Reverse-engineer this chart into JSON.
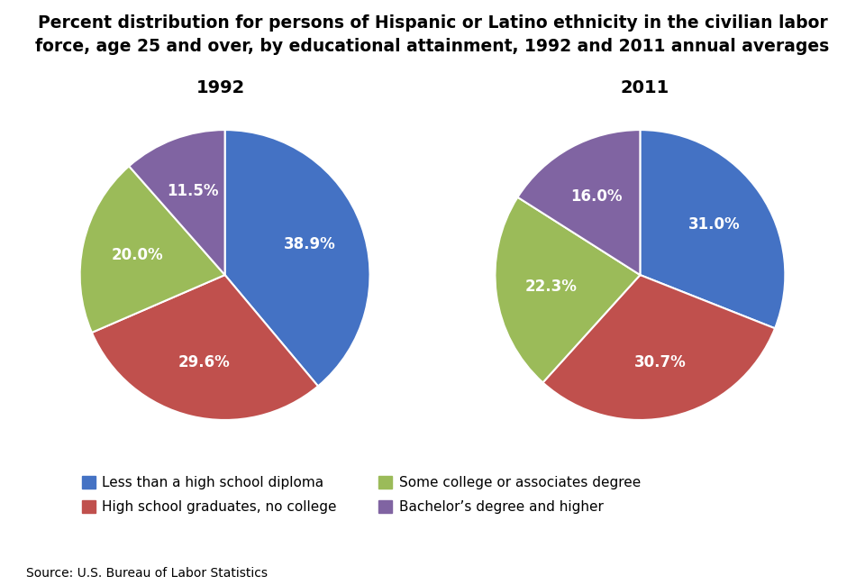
{
  "title_line1": "Percent distribution for persons of Hispanic or Latino ethnicity in the civilian labor",
  "title_line2": "force, age 25 and over, by educational attainment, 1992 and 2011 annual averages",
  "title_fontsize": 13.5,
  "subtitle_1992": "1992",
  "subtitle_2011": "2011",
  "source": "Source: U.S. Bureau of Labor Statistics",
  "values_1992": [
    38.9,
    29.6,
    20.0,
    11.5
  ],
  "values_2011": [
    31.0,
    30.7,
    22.3,
    16.0
  ],
  "labels_left": [
    "Less than a high school diploma",
    "Some college or associates degree"
  ],
  "labels_right": [
    "High school graduates, no college",
    "Bachelor’s degree and higher"
  ],
  "colors": [
    "#4472C4",
    "#C0504D",
    "#9BBB59",
    "#8064A2"
  ],
  "startangle_1992": 90,
  "startangle_2011": 90,
  "background_color": "#FFFFFF",
  "pct_fontsize": 12,
  "legend_fontsize": 11
}
